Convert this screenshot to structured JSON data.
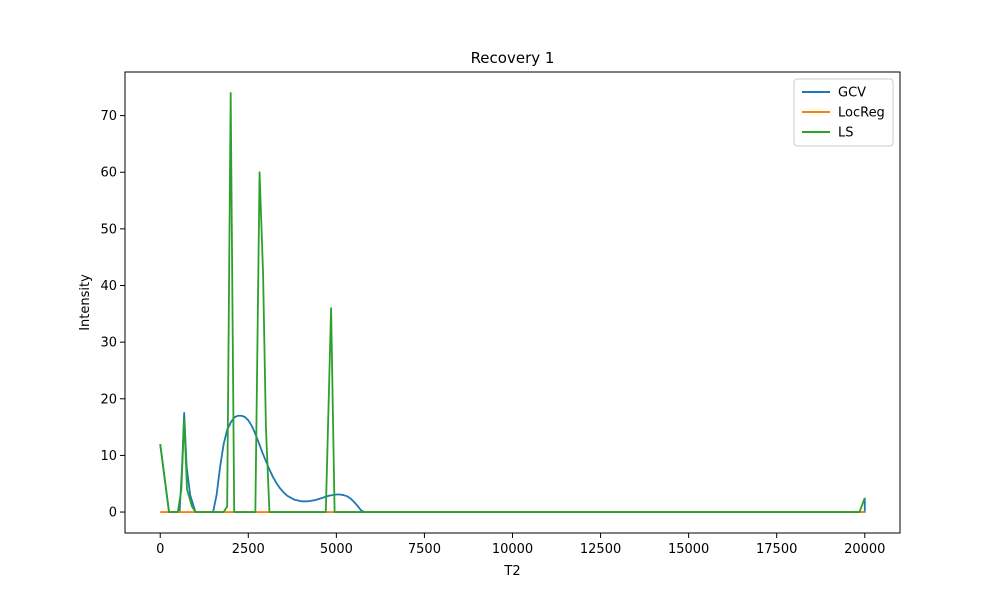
{
  "chart_data": {
    "type": "line",
    "title": "Recovery 1",
    "xlabel": "T2",
    "ylabel": "Intensity",
    "xlim": [
      -1000,
      21000
    ],
    "ylim": [
      -3.7,
      77.7
    ],
    "xticks": [
      0,
      2500,
      5000,
      7500,
      10000,
      12500,
      15000,
      17500,
      20000
    ],
    "yticks": [
      0,
      10,
      20,
      30,
      40,
      50,
      60,
      70
    ],
    "grid": false,
    "legend_position": "top-right",
    "series": [
      {
        "name": "GCV",
        "color": "#1f77b4",
        "points": [
          [
            0,
            12
          ],
          [
            250,
            0
          ],
          [
            400,
            0
          ],
          [
            550,
            0
          ],
          [
            620,
            8
          ],
          [
            680,
            17.5
          ],
          [
            750,
            8
          ],
          [
            850,
            3
          ],
          [
            1000,
            0
          ],
          [
            1300,
            0
          ],
          [
            1500,
            0
          ],
          [
            1600,
            3
          ],
          [
            1700,
            8
          ],
          [
            1800,
            12
          ],
          [
            1900,
            14.5
          ],
          [
            2000,
            15.8
          ],
          [
            2100,
            16.7
          ],
          [
            2200,
            17
          ],
          [
            2300,
            17
          ],
          [
            2400,
            16.8
          ],
          [
            2500,
            16.2
          ],
          [
            2600,
            15.2
          ],
          [
            2700,
            13.8
          ],
          [
            2800,
            12.2
          ],
          [
            2900,
            10.5
          ],
          [
            3000,
            9
          ],
          [
            3100,
            7.5
          ],
          [
            3200,
            6.2
          ],
          [
            3300,
            5.1
          ],
          [
            3400,
            4.2
          ],
          [
            3500,
            3.5
          ],
          [
            3600,
            2.9
          ],
          [
            3800,
            2.2
          ],
          [
            4000,
            1.9
          ],
          [
            4200,
            1.9
          ],
          [
            4400,
            2.1
          ],
          [
            4600,
            2.5
          ],
          [
            4800,
            2.9
          ],
          [
            5000,
            3.1
          ],
          [
            5100,
            3.1
          ],
          [
            5200,
            3
          ],
          [
            5300,
            2.8
          ],
          [
            5400,
            2.4
          ],
          [
            5500,
            1.8
          ],
          [
            5600,
            1.1
          ],
          [
            5700,
            0.3
          ],
          [
            5800,
            0
          ],
          [
            20000,
            0
          ],
          [
            20000,
            2.5
          ]
        ]
      },
      {
        "name": "LocReg",
        "color": "#ff7f0e",
        "points": [
          [
            0,
            0
          ],
          [
            20000,
            0
          ]
        ]
      },
      {
        "name": "LS",
        "color": "#2ca02c",
        "points": [
          [
            0,
            12
          ],
          [
            250,
            0
          ],
          [
            500,
            0
          ],
          [
            600,
            4
          ],
          [
            680,
            16.5
          ],
          [
            760,
            4
          ],
          [
            900,
            1
          ],
          [
            1000,
            0
          ],
          [
            1800,
            0
          ],
          [
            1900,
            1
          ],
          [
            2000,
            74
          ],
          [
            2100,
            0
          ],
          [
            2700,
            0
          ],
          [
            2820,
            60
          ],
          [
            2920,
            42
          ],
          [
            3000,
            15
          ],
          [
            3100,
            0
          ],
          [
            4700,
            0
          ],
          [
            4850,
            36
          ],
          [
            4950,
            0
          ],
          [
            19850,
            0
          ],
          [
            20000,
            2.5
          ]
        ]
      }
    ]
  }
}
